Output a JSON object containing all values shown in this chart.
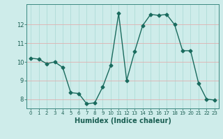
{
  "x": [
    0,
    1,
    2,
    3,
    4,
    5,
    6,
    7,
    8,
    9,
    10,
    11,
    12,
    13,
    14,
    15,
    16,
    17,
    18,
    19,
    20,
    21,
    22,
    23
  ],
  "y": [
    10.2,
    10.15,
    9.9,
    10.0,
    9.7,
    8.35,
    8.3,
    7.75,
    7.8,
    8.65,
    9.8,
    12.6,
    9.0,
    10.55,
    11.95,
    12.55,
    12.5,
    12.55,
    12.0,
    10.6,
    10.6,
    8.85,
    8.0,
    7.95
  ],
  "line_color": "#1a6b5e",
  "marker": "D",
  "marker_size": 2.5,
  "bg_color": "#ceecea",
  "grid_color_vert": "#a8d8d4",
  "grid_color_horiz": "#e0b0b0",
  "xlabel": "Humidex (Indice chaleur)",
  "xlabel_fontsize": 7,
  "xlabel_color": "#1a5e52",
  "tick_color": "#1a5e52",
  "xlim": [
    -0.5,
    23.5
  ],
  "ylim": [
    7.5,
    13.1
  ],
  "yticks": [
    8,
    9,
    10,
    11,
    12
  ],
  "xticks": [
    0,
    1,
    2,
    3,
    4,
    5,
    6,
    7,
    8,
    9,
    10,
    11,
    12,
    13,
    14,
    15,
    16,
    17,
    18,
    19,
    20,
    21,
    22,
    23
  ],
  "linewidth": 1.0
}
